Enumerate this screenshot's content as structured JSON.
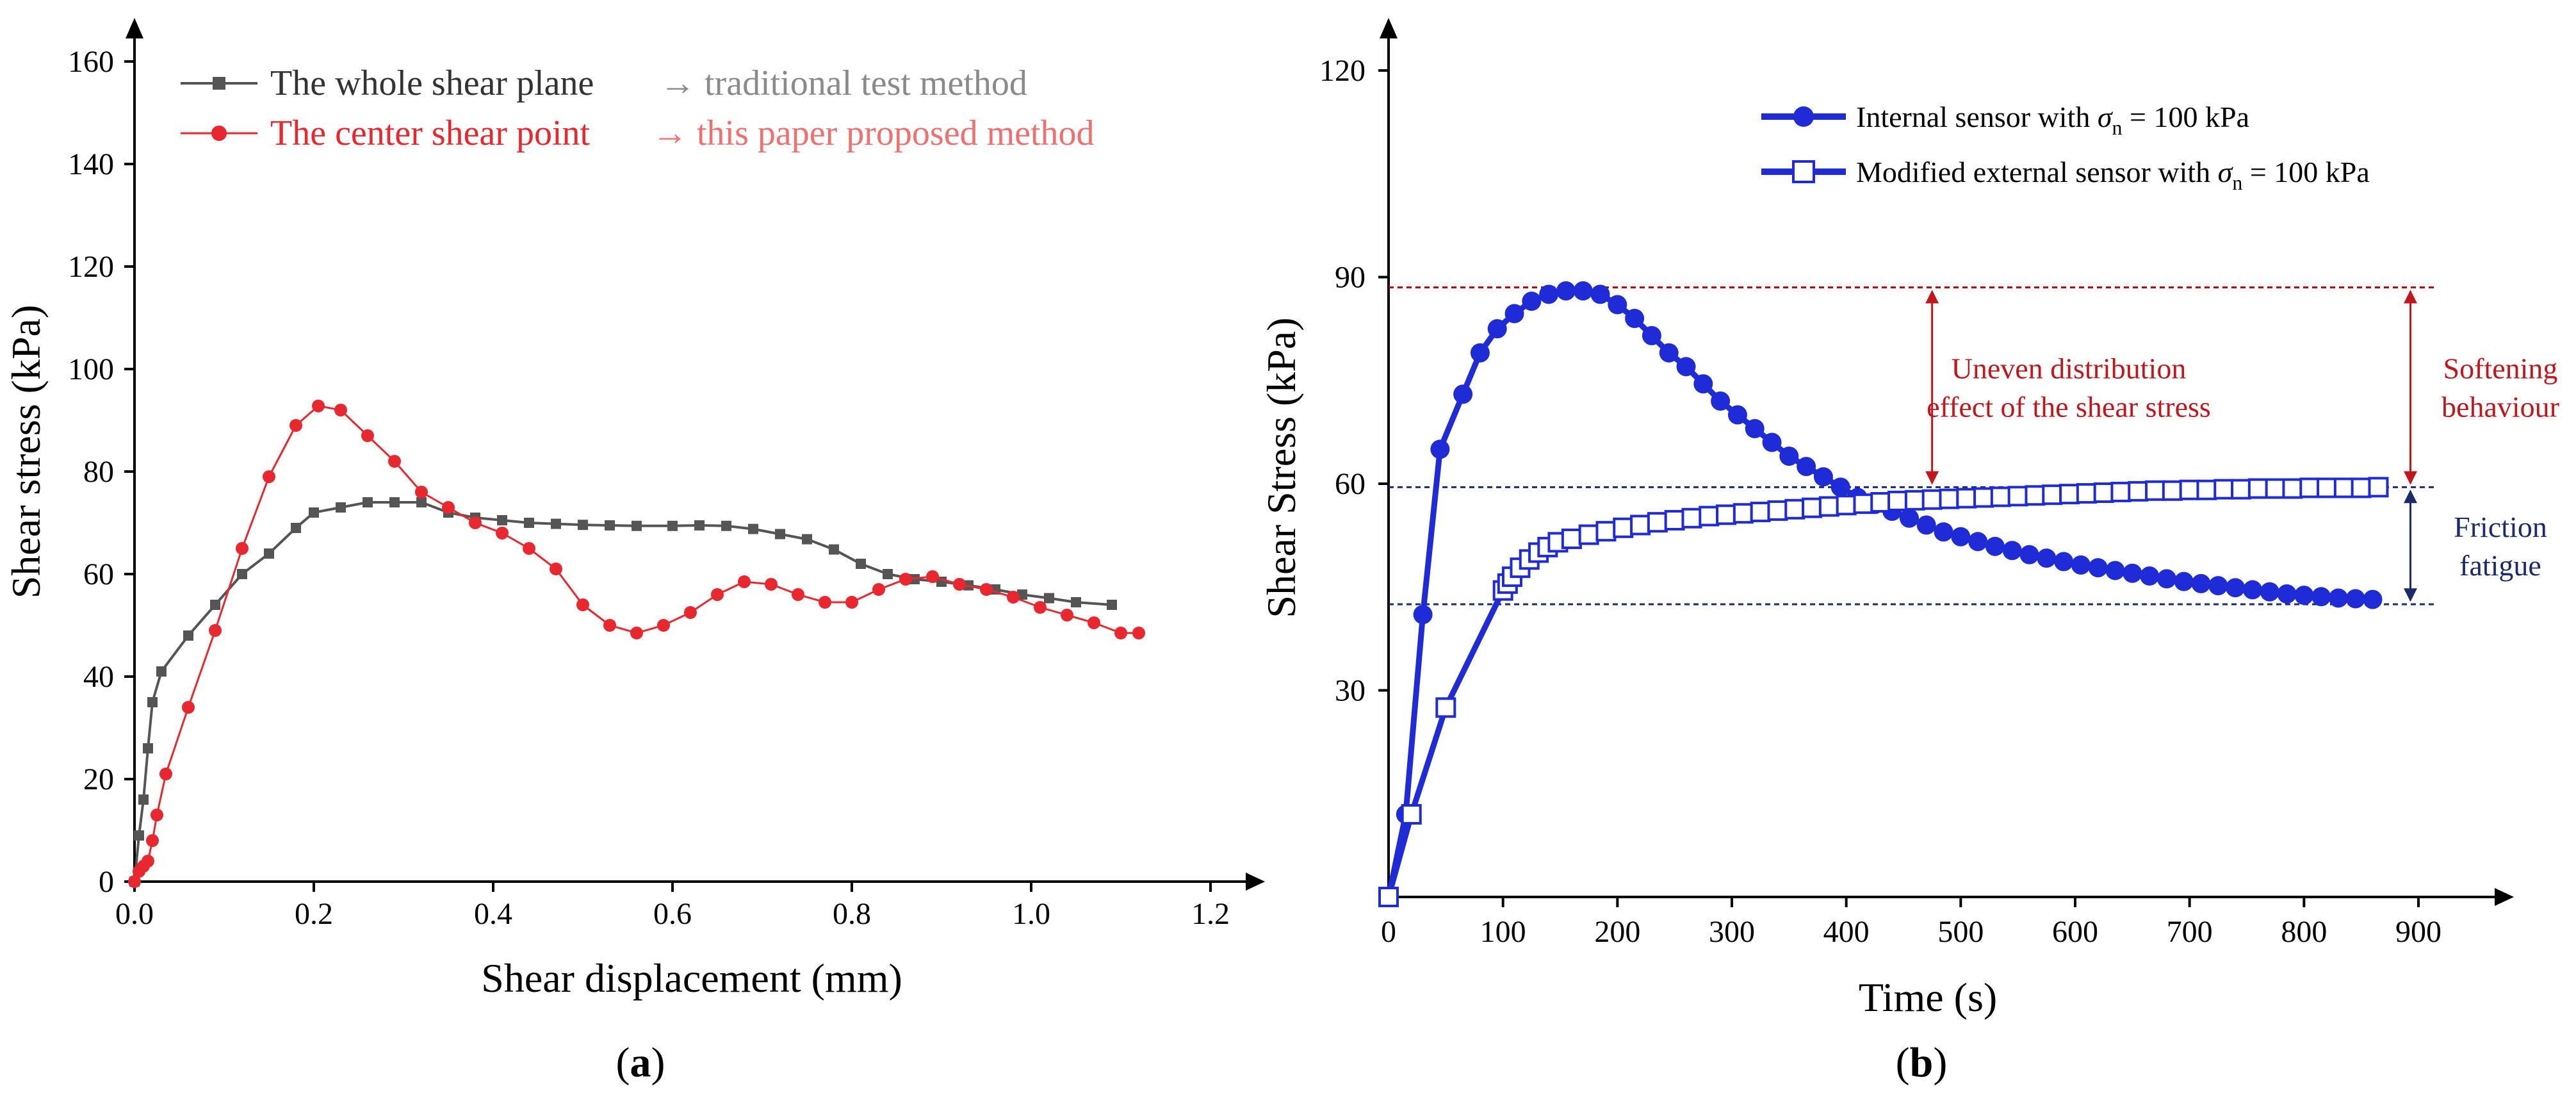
{
  "panel_a": {
    "caption_open": "(",
    "caption_letter": "a",
    "caption_close": ")",
    "chart_data": {
      "type": "line",
      "xlabel": "Shear displacement (mm)",
      "ylabel": "Shear stress (kPa)",
      "xlim": [
        0,
        1.2
      ],
      "ylim": [
        0,
        160
      ],
      "x_ticks": [
        "0.0",
        "0.2",
        "0.4",
        "0.6",
        "0.8",
        "1.0",
        "1.2"
      ],
      "y_ticks": [
        "0",
        "20",
        "40",
        "60",
        "80",
        "100",
        "120",
        "140",
        "160"
      ],
      "legend_position": "top-left",
      "series": [
        {
          "name": "The whole shear plane",
          "annotation": "→ traditional test method",
          "color": "#555555",
          "annotation_color": "#8a8a8a",
          "marker": "square",
          "points": [
            [
              0,
              0
            ],
            [
              0.005,
              9
            ],
            [
              0.01,
              16
            ],
            [
              0.015,
              26
            ],
            [
              0.02,
              35
            ],
            [
              0.03,
              41
            ],
            [
              0.06,
              48
            ],
            [
              0.09,
              54
            ],
            [
              0.12,
              60
            ],
            [
              0.15,
              64
            ],
            [
              0.18,
              69
            ],
            [
              0.2,
              72
            ],
            [
              0.23,
              73
            ],
            [
              0.26,
              74
            ],
            [
              0.29,
              74
            ],
            [
              0.32,
              74
            ],
            [
              0.35,
              72
            ],
            [
              0.38,
              71
            ],
            [
              0.41,
              70.5
            ],
            [
              0.44,
              70
            ],
            [
              0.47,
              69.8
            ],
            [
              0.5,
              69.6
            ],
            [
              0.53,
              69.5
            ],
            [
              0.56,
              69.4
            ],
            [
              0.6,
              69.4
            ],
            [
              0.63,
              69.5
            ],
            [
              0.66,
              69.4
            ],
            [
              0.69,
              68.8
            ],
            [
              0.72,
              67.8
            ],
            [
              0.75,
              66.8
            ],
            [
              0.78,
              64.8
            ],
            [
              0.81,
              62
            ],
            [
              0.84,
              60
            ],
            [
              0.87,
              59
            ],
            [
              0.9,
              58.5
            ],
            [
              0.93,
              57.8
            ],
            [
              0.96,
              57
            ],
            [
              0.99,
              56
            ],
            [
              1.02,
              55.3
            ],
            [
              1.05,
              54.5
            ],
            [
              1.09,
              54
            ]
          ]
        },
        {
          "name": "The center shear point",
          "annotation": "→ this paper proposed method",
          "color": "#e8272e",
          "annotation_color": "#f07070",
          "marker": "circle",
          "points": [
            [
              0,
              0
            ],
            [
              0.005,
              2
            ],
            [
              0.01,
              3
            ],
            [
              0.015,
              4
            ],
            [
              0.02,
              8
            ],
            [
              0.025,
              13
            ],
            [
              0.035,
              21
            ],
            [
              0.06,
              34
            ],
            [
              0.09,
              49
            ],
            [
              0.12,
              65
            ],
            [
              0.15,
              79
            ],
            [
              0.18,
              89
            ],
            [
              0.205,
              92.8
            ],
            [
              0.23,
              92
            ],
            [
              0.26,
              87
            ],
            [
              0.29,
              82
            ],
            [
              0.32,
              76
            ],
            [
              0.35,
              73
            ],
            [
              0.38,
              70
            ],
            [
              0.41,
              68
            ],
            [
              0.44,
              65
            ],
            [
              0.47,
              61
            ],
            [
              0.5,
              54
            ],
            [
              0.53,
              50
            ],
            [
              0.56,
              48.5
            ],
            [
              0.59,
              50
            ],
            [
              0.62,
              52.5
            ],
            [
              0.65,
              56
            ],
            [
              0.68,
              58.5
            ],
            [
              0.71,
              58
            ],
            [
              0.74,
              56
            ],
            [
              0.77,
              54.5
            ],
            [
              0.8,
              54.5
            ],
            [
              0.83,
              57
            ],
            [
              0.86,
              59
            ],
            [
              0.89,
              59.5
            ],
            [
              0.92,
              58
            ],
            [
              0.95,
              57
            ],
            [
              0.98,
              55.5
            ],
            [
              1.01,
              53.5
            ],
            [
              1.04,
              52
            ],
            [
              1.07,
              50.5
            ],
            [
              1.1,
              48.5
            ],
            [
              1.12,
              48.5
            ]
          ]
        }
      ]
    }
  },
  "panel_b": {
    "caption_open": "(",
    "caption_letter": "b",
    "caption_close": ")",
    "chart_data": {
      "type": "line",
      "xlabel": "Time (s)",
      "ylabel": "Shear Stress (kPa)",
      "xlim": [
        0,
        900
      ],
      "ylim": [
        0,
        120
      ],
      "x_ticks": [
        "0",
        "100",
        "200",
        "300",
        "400",
        "500",
        "600",
        "700",
        "800",
        "900"
      ],
      "y_ticks": [
        "30",
        "60",
        "90",
        "120"
      ],
      "legend_position": "top-right",
      "series": [
        {
          "name": "Internal sensor with σn = 100 kPa",
          "legend_prefix": "Internal sensor with ",
          "legend_symbol": "σ",
          "legend_sub": "n",
          "legend_suffix": " = 100 kPa",
          "color": "#1f2bd6",
          "marker": "filled-circle",
          "points": [
            [
              0,
              0
            ],
            [
              15,
              12
            ],
            [
              30,
              41
            ],
            [
              45,
              65
            ],
            [
              65,
              73
            ],
            [
              80,
              79
            ],
            [
              95,
              82.5
            ],
            [
              110,
              84.7
            ],
            [
              125,
              86.5
            ],
            [
              140,
              87.5
            ],
            [
              155,
              88
            ],
            [
              170,
              88
            ],
            [
              185,
              87.5
            ],
            [
              200,
              86
            ],
            [
              215,
              84
            ],
            [
              230,
              81.5
            ],
            [
              245,
              79
            ],
            [
              260,
              77
            ],
            [
              275,
              74.5
            ],
            [
              290,
              72
            ],
            [
              305,
              70
            ],
            [
              320,
              68
            ],
            [
              335,
              66
            ],
            [
              350,
              64
            ],
            [
              365,
              62.5
            ],
            [
              380,
              61
            ],
            [
              395,
              59.5
            ],
            [
              410,
              58
            ],
            [
              425,
              57
            ],
            [
              440,
              56
            ],
            [
              455,
              55
            ],
            [
              470,
              54
            ],
            [
              485,
              53
            ],
            [
              500,
              52.3
            ],
            [
              515,
              51.6
            ],
            [
              530,
              50.9
            ],
            [
              545,
              50.3
            ],
            [
              560,
              49.7
            ],
            [
              575,
              49.2
            ],
            [
              590,
              48.7
            ],
            [
              605,
              48.2
            ],
            [
              620,
              47.8
            ],
            [
              635,
              47.4
            ],
            [
              650,
              47
            ],
            [
              665,
              46.6
            ],
            [
              680,
              46.2
            ],
            [
              695,
              45.8
            ],
            [
              710,
              45.5
            ],
            [
              725,
              45.2
            ],
            [
              740,
              44.9
            ],
            [
              755,
              44.6
            ],
            [
              770,
              44.3
            ],
            [
              785,
              44
            ],
            [
              800,
              43.8
            ],
            [
              815,
              43.6
            ],
            [
              830,
              43.4
            ],
            [
              845,
              43.3
            ],
            [
              860,
              43.2
            ]
          ]
        },
        {
          "name": "Modified external sensor with σn = 100 kPa",
          "legend_prefix": "Modified external sensor with ",
          "legend_symbol": "σ",
          "legend_sub": "n",
          "legend_suffix": " = 100 kPa",
          "color": "#1f2bd6",
          "marker": "open-square",
          "points": [
            [
              0,
              0
            ],
            [
              20,
              12
            ],
            [
              50,
              27.5
            ],
            [
              100,
              44.5
            ],
            [
              104,
              45.5
            ],
            [
              108,
              46.5
            ],
            [
              115,
              47.8
            ],
            [
              123,
              49
            ],
            [
              131,
              50
            ],
            [
              139,
              50.8
            ],
            [
              148,
              51.5
            ],
            [
              160,
              52
            ],
            [
              175,
              52.6
            ],
            [
              190,
              53.1
            ],
            [
              205,
              53.6
            ],
            [
              220,
              54
            ],
            [
              235,
              54.4
            ],
            [
              250,
              54.7
            ],
            [
              265,
              55
            ],
            [
              280,
              55.3
            ],
            [
              295,
              55.5
            ],
            [
              310,
              55.7
            ],
            [
              325,
              55.9
            ],
            [
              340,
              56.1
            ],
            [
              355,
              56.3
            ],
            [
              370,
              56.5
            ],
            [
              385,
              56.7
            ],
            [
              400,
              56.9
            ],
            [
              415,
              57.1
            ],
            [
              430,
              57.3
            ],
            [
              445,
              57.5
            ],
            [
              460,
              57.6
            ],
            [
              475,
              57.7
            ],
            [
              490,
              57.8
            ],
            [
              505,
              57.9
            ],
            [
              520,
              58
            ],
            [
              535,
              58.1
            ],
            [
              550,
              58.2
            ],
            [
              565,
              58.3
            ],
            [
              580,
              58.4
            ],
            [
              595,
              58.5
            ],
            [
              610,
              58.6
            ],
            [
              625,
              58.7
            ],
            [
              640,
              58.8
            ],
            [
              655,
              58.9
            ],
            [
              670,
              59
            ],
            [
              685,
              59
            ],
            [
              700,
              59.1
            ],
            [
              715,
              59.1
            ],
            [
              730,
              59.2
            ],
            [
              745,
              59.2
            ],
            [
              760,
              59.3
            ],
            [
              775,
              59.3
            ],
            [
              790,
              59.3
            ],
            [
              805,
              59.4
            ],
            [
              820,
              59.4
            ],
            [
              835,
              59.4
            ],
            [
              850,
              59.4
            ],
            [
              865,
              59.5
            ]
          ]
        }
      ],
      "reference_lines": [
        {
          "y": 88.5,
          "color": "#b00000"
        },
        {
          "y": 59.5,
          "color": "#1a2a6c"
        },
        {
          "y": 42.5,
          "color": "#1a2a6c"
        }
      ],
      "annotations": [
        {
          "text_lines": [
            "Uneven distribution",
            "effect of the shear stress"
          ],
          "color": "#c0161c",
          "arrow_x": 475,
          "from": 88.5,
          "to": 59.5
        },
        {
          "text_lines": [
            "Softening",
            "behaviour"
          ],
          "color": "#c0161c",
          "arrow_x": 893,
          "from": 88.5,
          "to": 59.5
        },
        {
          "text_lines": [
            "Friction",
            "fatigue"
          ],
          "color": "#1a2a6c",
          "arrow_x": 893,
          "from": 59.5,
          "to": 42.5
        }
      ]
    }
  }
}
